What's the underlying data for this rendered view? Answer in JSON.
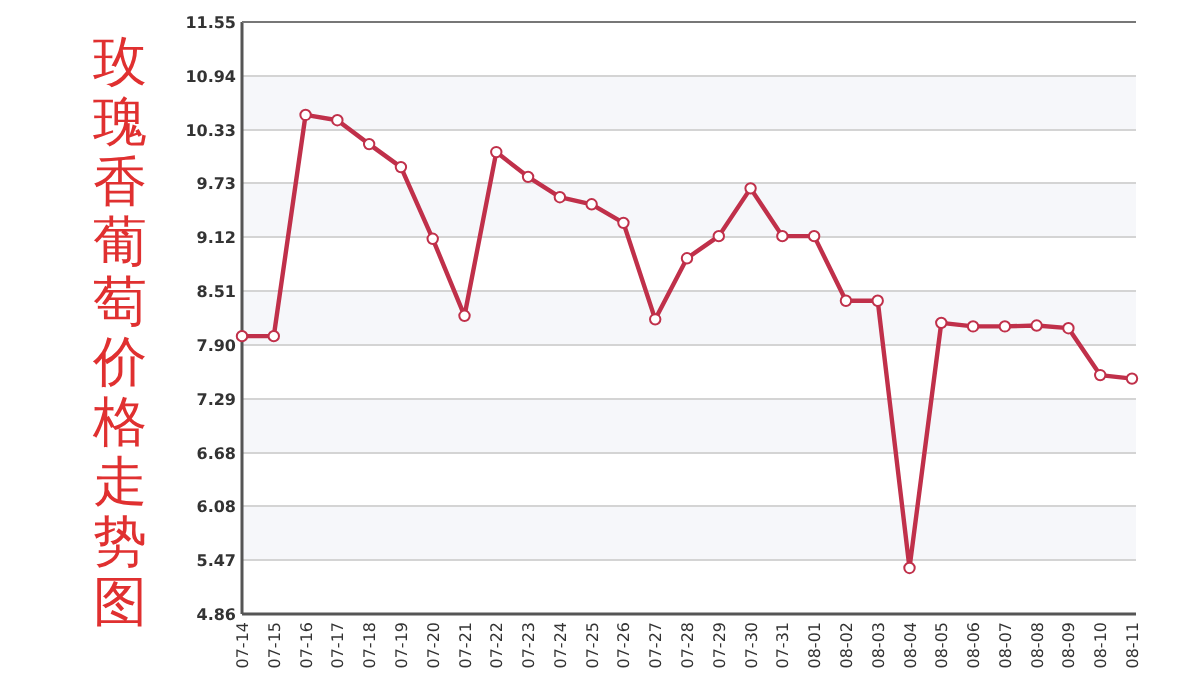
{
  "chart_data": {
    "type": "line",
    "title": "玫瑰香葡萄价格走势图",
    "categories": [
      "07-14",
      "07-15",
      "07-16",
      "07-17",
      "07-18",
      "07-19",
      "07-20",
      "07-21",
      "07-22",
      "07-23",
      "07-24",
      "07-25",
      "07-26",
      "07-27",
      "07-28",
      "07-29",
      "07-30",
      "07-31",
      "08-01",
      "08-02",
      "08-03",
      "08-04",
      "08-05",
      "08-06",
      "08-07",
      "08-08",
      "08-09",
      "08-10",
      "08-11"
    ],
    "values": [
      8.0,
      8.0,
      10.5,
      10.44,
      10.17,
      9.91,
      9.1,
      8.23,
      10.08,
      9.8,
      9.57,
      9.49,
      9.28,
      8.19,
      8.88,
      9.13,
      9.67,
      9.13,
      9.13,
      8.4,
      8.4,
      5.38,
      8.15,
      8.11,
      8.11,
      8.12,
      8.09,
      7.56,
      7.52
    ],
    "color": "#c0304a",
    "ylim": [
      4.86,
      11.55
    ],
    "yticks": [
      4.86,
      5.47,
      6.08,
      6.68,
      7.29,
      {
        "value": 7.9,
        "label": "7.90"
      },
      8.51,
      9.12,
      9.73,
      10.33,
      10.94,
      11.55
    ],
    "grid": "y",
    "marker": "circle",
    "line_style": "solid"
  }
}
